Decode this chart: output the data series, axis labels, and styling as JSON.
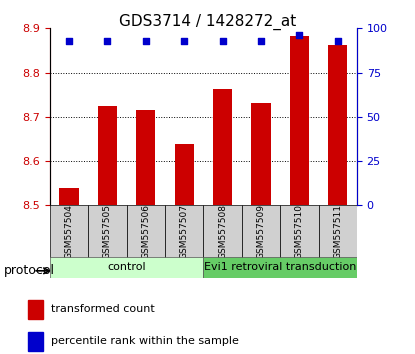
{
  "title": "GDS3714 / 1428272_at",
  "samples": [
    "GSM557504",
    "GSM557505",
    "GSM557506",
    "GSM557507",
    "GSM557508",
    "GSM557509",
    "GSM557510",
    "GSM557511"
  ],
  "bar_values": [
    8.54,
    8.725,
    8.715,
    8.638,
    8.762,
    8.732,
    8.882,
    8.862
  ],
  "percentile_values": [
    93,
    93,
    93,
    93,
    93,
    93,
    96,
    93
  ],
  "bar_color": "#cc0000",
  "percentile_color": "#0000cc",
  "ymin": 8.5,
  "ymax": 8.9,
  "y2min": 0,
  "y2max": 100,
  "yticks": [
    8.5,
    8.6,
    8.7,
    8.8,
    8.9
  ],
  "y2ticks": [
    0,
    25,
    50,
    75,
    100
  ],
  "grid_values": [
    8.6,
    8.7,
    8.8
  ],
  "control_label": "control",
  "treatment_label": "Evi1 retroviral transduction",
  "protocol_label": "protocol",
  "control_color": "#ccffcc",
  "treatment_color": "#66cc66",
  "group_boundary": 4,
  "legend_bar_label": "transformed count",
  "legend_pct_label": "percentile rank within the sample",
  "bar_width": 0.5,
  "base_value": 8.5
}
